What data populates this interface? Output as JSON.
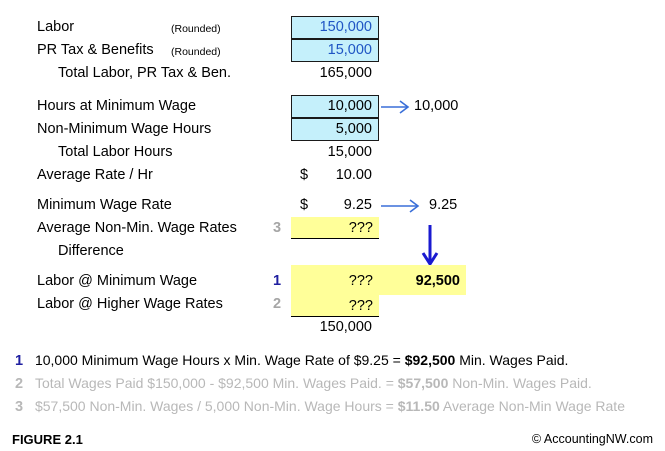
{
  "rows": {
    "labor": {
      "label": "Labor",
      "note": "(Rounded)",
      "value": "150,000"
    },
    "pr_tax": {
      "label": "PR Tax & Benefits",
      "note": "(Rounded)",
      "value": "15,000"
    },
    "total_labor": {
      "label": "Total Labor, PR Tax & Ben.",
      "value": "165,000"
    },
    "hours_min": {
      "label": "Hours at Minimum Wage",
      "value": "10,000",
      "arrow_value": "10,000"
    },
    "non_min_hours": {
      "label": "Non-Minimum Wage Hours",
      "value": "5,000"
    },
    "total_hours": {
      "label": "Total Labor Hours",
      "value": "15,000"
    },
    "avg_rate": {
      "label": "Average Rate / Hr",
      "currency": "$",
      "value": "10.00"
    },
    "min_rate": {
      "label": "Minimum Wage Rate",
      "currency": "$",
      "value": "9.25",
      "arrow_value": "9.25"
    },
    "avg_non_min": {
      "label": "Average Non-Min. Wage Rates",
      "step": "3",
      "value": "???"
    },
    "difference": {
      "label": "Difference"
    },
    "labor_min": {
      "label": "Labor @ Minimum Wage",
      "step": "1",
      "value": "???",
      "result": "92,500"
    },
    "labor_higher": {
      "label": "Labor @ Higher Wage Rates",
      "step": "2",
      "value": "???"
    },
    "grand_total": {
      "value": "150,000"
    }
  },
  "notes": [
    {
      "num": "1",
      "pre": "10,000 Minimum Wage Hours x Min. Wage Rate of $9.25 = ",
      "bold": "$92,500",
      "post": " Min. Wages Paid."
    },
    {
      "num": "2",
      "pre": "Total Wages Paid $150,000 - $92,500 Min. Wages Paid. = ",
      "bold": "$57,500",
      "post": " Non-Min. Wages Paid."
    },
    {
      "num": "3",
      "pre": "$57,500 Non-Min. Wages / 5,000 Non-Min. Wage Hours = ",
      "bold": "$11.50",
      "post": " Average Non-Min Wage Rate"
    }
  ],
  "footer": {
    "figure": "FIGURE 2.1",
    "copyright": "© AccountingNW.com"
  },
  "colors": {
    "input_fill": "#c5f0fb",
    "highlight_fill": "#ffff99",
    "arrow": "#3a6fd8",
    "down_arrow": "#1a1ad0"
  }
}
